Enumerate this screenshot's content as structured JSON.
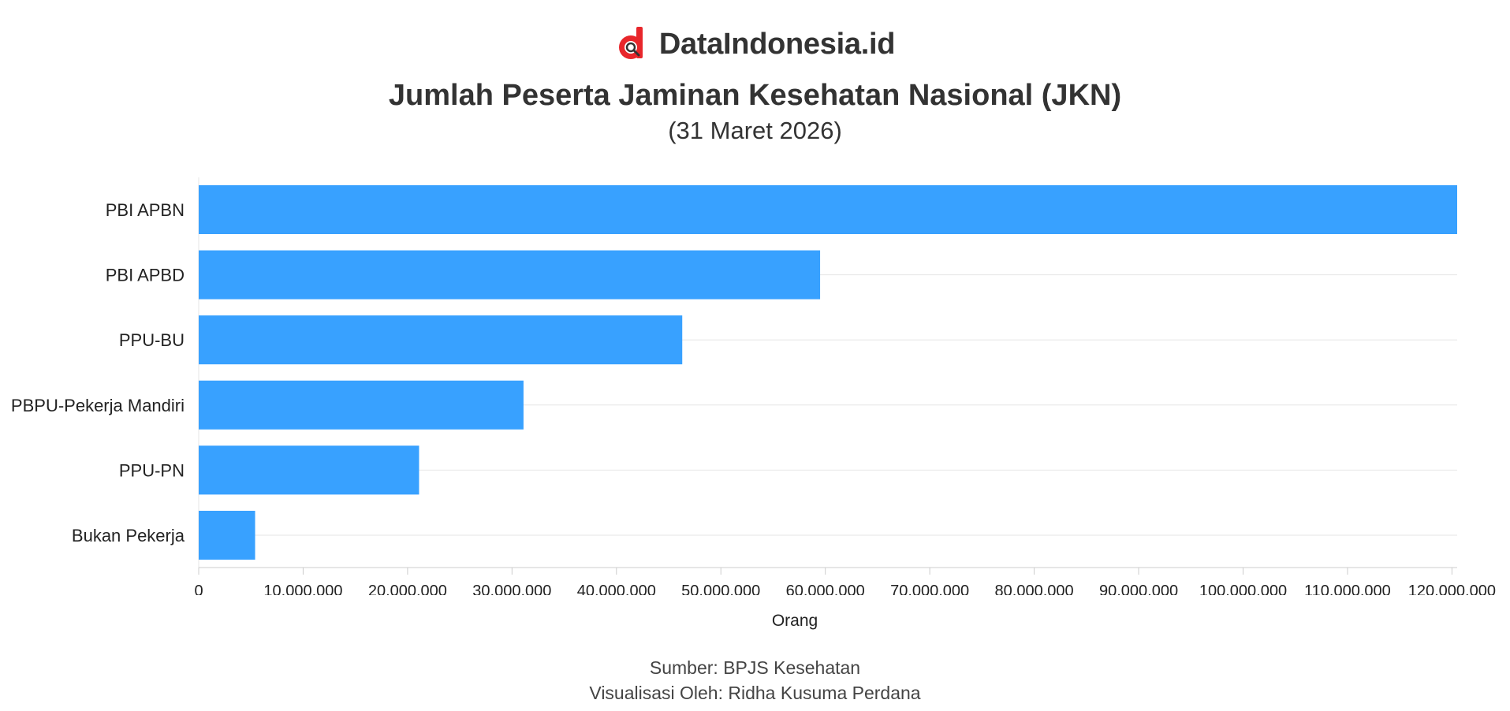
{
  "brand": {
    "name": "DataIndonesia.id",
    "logo_icon": "dataindonesia-logo-icon",
    "logo_color": "#e8262b"
  },
  "chart_data": {
    "type": "bar",
    "orientation": "horizontal",
    "title": "Jumlah Peserta Jaminan Kesehatan Nasional (JKN)",
    "subtitle": "(31 Maret 2026)",
    "categories": [
      "PBI APBN",
      "PBI APBD",
      "PPU-BU",
      "PBPU-Pekerja Mandiri",
      "PPU-PN",
      "Bukan Pekerja"
    ],
    "values": [
      120500000,
      59500000,
      46300000,
      31100000,
      21100000,
      5400000
    ],
    "xlabel": "Orang",
    "ylabel": "",
    "xlim": [
      0,
      120500000
    ],
    "xticks": [
      0,
      10000000,
      20000000,
      30000000,
      40000000,
      50000000,
      60000000,
      70000000,
      80000000,
      90000000,
      100000000,
      110000000,
      120000000
    ],
    "xtick_labels": [
      "0",
      "10.000.000",
      "20.000.000",
      "30.000.000",
      "40.000.000",
      "50.000.000",
      "60.000.000",
      "70.000.000",
      "80.000.000",
      "90.000.000",
      "100.000.000",
      "110.000.000",
      "120.000.000"
    ],
    "bar_color": "#38a1ff",
    "grid": true
  },
  "footer": {
    "source": "Sumber: BPJS Kesehatan",
    "credit": "Visualisasi Oleh: Ridha Kusuma Perdana"
  }
}
